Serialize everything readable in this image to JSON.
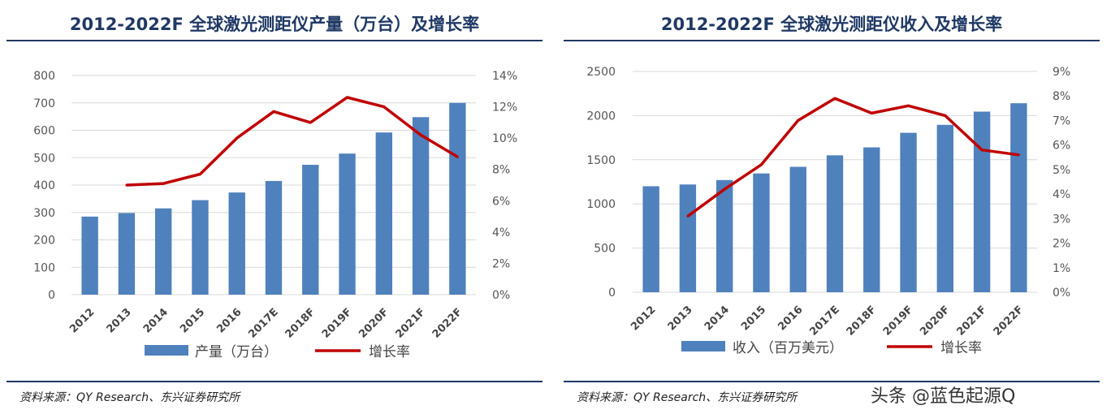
{
  "panels": [
    {
      "title": "2012-2022F 全球激光测距仪产量（万台）及增长率",
      "source": "资料来源：QY Research、东兴证券研究所",
      "chart_data": {
        "type": "bar",
        "categories": [
          "2012",
          "2013",
          "2014",
          "2015",
          "2016",
          "2017E",
          "2018F",
          "2019F",
          "2020F",
          "2021F",
          "2022F"
        ],
        "series": [
          {
            "name": "产量（万台）",
            "type": "bar",
            "axis": "left",
            "color": "#4f81bd",
            "values": [
              285,
              298,
              315,
              345,
              373,
              415,
              474,
              515,
              592,
              648,
              700
            ]
          },
          {
            "name": "增长率",
            "type": "line",
            "axis": "right",
            "color": "#c00000",
            "values": [
              null,
              7.0,
              7.1,
              7.7,
              10.0,
              11.7,
              11.0,
              12.6,
              12.0,
              10.2,
              8.8
            ]
          }
        ],
        "ylim_left": [
          0,
          800
        ],
        "yticks_left": [
          "0",
          "100",
          "200",
          "300",
          "400",
          "500",
          "600",
          "700",
          "800"
        ],
        "ylim_right": [
          0,
          14
        ],
        "yticks_right": [
          "0%",
          "2%",
          "4%",
          "6%",
          "8%",
          "10%",
          "12%",
          "14%"
        ],
        "legend": "bottom"
      }
    },
    {
      "title": "2012-2022F 全球激光测距仪收入及增长率",
      "source": "资料来源：QY Research、东兴证券研究所",
      "chart_data": {
        "type": "bar",
        "categories": [
          "2012",
          "2013",
          "2014",
          "2015",
          "2016",
          "2017E",
          "2018F",
          "2019F",
          "2020F",
          "2021F",
          "2022F"
        ],
        "series": [
          {
            "name": "收入（百万美元）",
            "type": "bar",
            "axis": "left",
            "color": "#4f81bd",
            "values": [
              1200,
              1220,
              1270,
              1345,
              1420,
              1550,
              1640,
              1805,
              1895,
              2045,
              2140
            ]
          },
          {
            "name": "增长率",
            "type": "line",
            "axis": "right",
            "color": "#c00000",
            "values": [
              null,
              3.1,
              4.2,
              5.2,
              7.0,
              7.9,
              7.3,
              7.6,
              7.2,
              5.8,
              5.6
            ]
          }
        ],
        "ylim_left": [
          0,
          2500
        ],
        "yticks_left": [
          "0",
          "500",
          "1000",
          "1500",
          "2000",
          "2500"
        ],
        "ylim_right": [
          0,
          9
        ],
        "yticks_right": [
          "0%",
          "1%",
          "2%",
          "3%",
          "4%",
          "5%",
          "6%",
          "7%",
          "8%",
          "9%"
        ],
        "legend": "bottom"
      }
    }
  ],
  "watermark": "头条 @蓝色起源Q"
}
